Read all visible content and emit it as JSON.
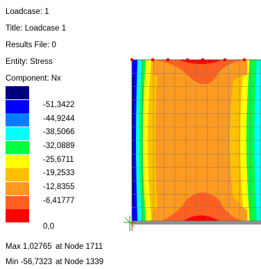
{
  "header": {
    "loadcase": "Loadcase: 1",
    "title": "Title: Loadcase 1",
    "results_file": "Results File: 0",
    "entity": "Entity: Stress",
    "component": "Component: Nx"
  },
  "legend": {
    "colors": [
      "#00007f",
      "#0000ff",
      "#0080ff",
      "#00ffff",
      "#00ff40",
      "#ffff00",
      "#ffc000",
      "#ff9a20",
      "#ff6020",
      "#ff0000"
    ],
    "labels": [
      "-51,3422",
      "-44,9244",
      "-38,5066",
      "-32,0889",
      "-25,6711",
      "-19,2533",
      "-12,8355",
      "-6,41777",
      "0,0"
    ]
  },
  "stats": {
    "max_value": "Max 1,02765",
    "max_node": "at Node 1711",
    "min_value": "Min -56,7323",
    "min_node": "at Node 1339"
  },
  "plot": {
    "support_color": "#00a000",
    "mesh_color": "#7a7a7a",
    "node_color": "#e00000"
  }
}
